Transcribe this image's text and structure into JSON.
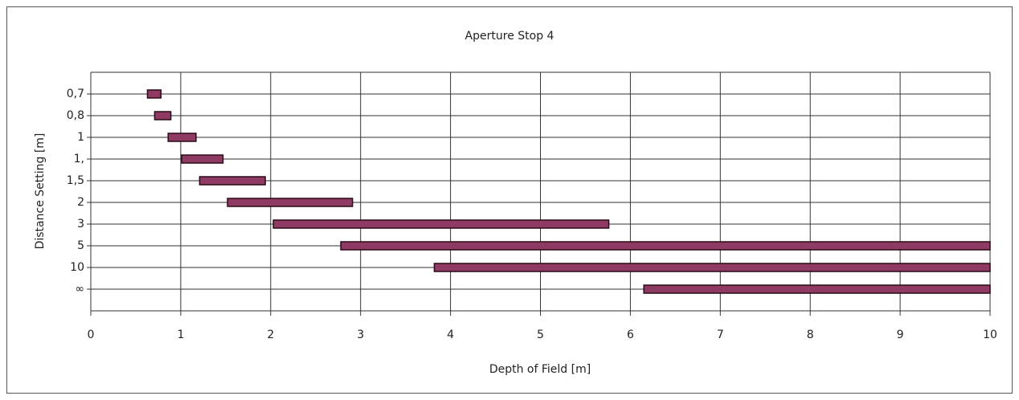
{
  "chart_data": {
    "type": "range-bar",
    "title": "Aperture Stop 4",
    "x_label": "Depth of Field [m]",
    "y_label": "Distance Setting [m]",
    "categories": [
      "0,7",
      "0,8",
      "1",
      "1,",
      "1,5",
      "2",
      "3",
      "5",
      "10",
      "∞"
    ],
    "starts": [
      0.63,
      0.71,
      0.86,
      1.01,
      1.21,
      1.52,
      2.03,
      2.78,
      3.82,
      6.15
    ],
    "ends": [
      0.78,
      0.89,
      1.17,
      1.47,
      1.94,
      2.91,
      5.76,
      10,
      10,
      10
    ],
    "color": "#8e3a62",
    "xlim": [
      0,
      10
    ],
    "xticks": [
      0,
      1,
      2,
      3,
      4,
      5,
      6,
      7,
      8,
      9,
      10
    ],
    "grid": true
  }
}
